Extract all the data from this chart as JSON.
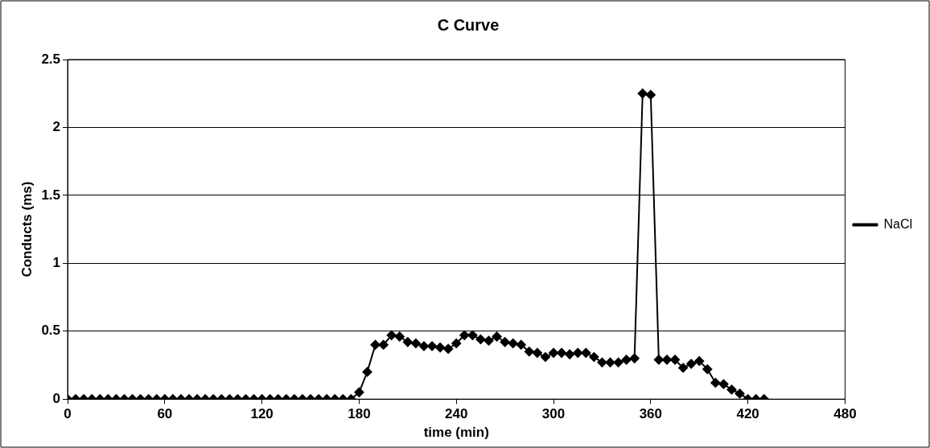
{
  "chart_data": {
    "type": "line",
    "title": "C Curve",
    "xlabel": "time (min)",
    "ylabel": "Conducts (ms)",
    "xlim": [
      0,
      480
    ],
    "xticks": [
      0,
      60,
      120,
      180,
      240,
      300,
      360,
      420,
      480
    ],
    "ylim": [
      0,
      2.5
    ],
    "yticks": [
      0,
      0.5,
      1,
      1.5,
      2,
      2.5
    ],
    "grid": "y",
    "legend": "right",
    "marker": "diamond",
    "line_style": "solid",
    "series": [
      {
        "name": "NaCl",
        "color": "#000000",
        "x": [
          0,
          5,
          10,
          15,
          20,
          25,
          30,
          35,
          40,
          45,
          50,
          55,
          60,
          65,
          70,
          75,
          80,
          85,
          90,
          95,
          100,
          105,
          110,
          115,
          120,
          125,
          130,
          135,
          140,
          145,
          150,
          155,
          160,
          165,
          170,
          175,
          180,
          185,
          190,
          195,
          200,
          205,
          210,
          215,
          220,
          225,
          230,
          235,
          240,
          245,
          250,
          255,
          260,
          265,
          270,
          275,
          280,
          285,
          290,
          295,
          300,
          305,
          310,
          315,
          320,
          325,
          330,
          335,
          340,
          345,
          350,
          355,
          360,
          365,
          370,
          375,
          380,
          385,
          390,
          395,
          400,
          405,
          410,
          415,
          420,
          425,
          430
        ],
        "values": [
          0,
          0,
          0,
          0,
          0,
          0,
          0,
          0,
          0,
          0,
          0,
          0,
          0,
          0,
          0,
          0,
          0,
          0,
          0,
          0,
          0,
          0,
          0,
          0,
          0,
          0,
          0,
          0,
          0,
          0,
          0,
          0,
          0,
          0,
          0,
          0,
          0.05,
          0.2,
          0.4,
          0.4,
          0.47,
          0.46,
          0.42,
          0.41,
          0.39,
          0.39,
          0.38,
          0.37,
          0.41,
          0.47,
          0.47,
          0.44,
          0.43,
          0.46,
          0.42,
          0.41,
          0.4,
          0.35,
          0.34,
          0.31,
          0.34,
          0.34,
          0.33,
          0.34,
          0.34,
          0.31,
          0.27,
          0.27,
          0.27,
          0.29,
          0.3,
          2.25,
          2.24,
          0.29,
          0.29,
          0.29,
          0.23,
          0.26,
          0.28,
          0.22,
          0.12,
          0.11,
          0.07,
          0.04,
          0,
          0,
          0
        ]
      }
    ]
  }
}
